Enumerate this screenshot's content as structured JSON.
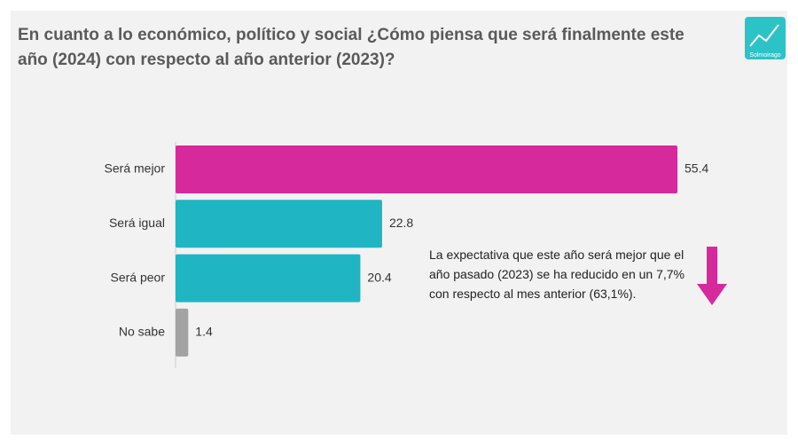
{
  "chart_data": {
    "type": "hbar",
    "title": "En cuanto a lo económico, político y social ¿Cómo piensa que será finalmente este año (2024) con respecto al año anterior (2023)?",
    "categories": [
      "Será mejor",
      "Será igual",
      "Será peor",
      "No sabe"
    ],
    "values": [
      55.4,
      22.8,
      20.4,
      1.4
    ],
    "colors": [
      "#d62a9c",
      "#1fb5c3",
      "#1fb5c3",
      "#a3a3a3"
    ],
    "annotation": "La expectativa que este año será mejor que el año pasado (2023) se ha reducido en un 7,7% con respecto al mes anterior (63,1%).",
    "logo_text": "Solmoirago"
  }
}
